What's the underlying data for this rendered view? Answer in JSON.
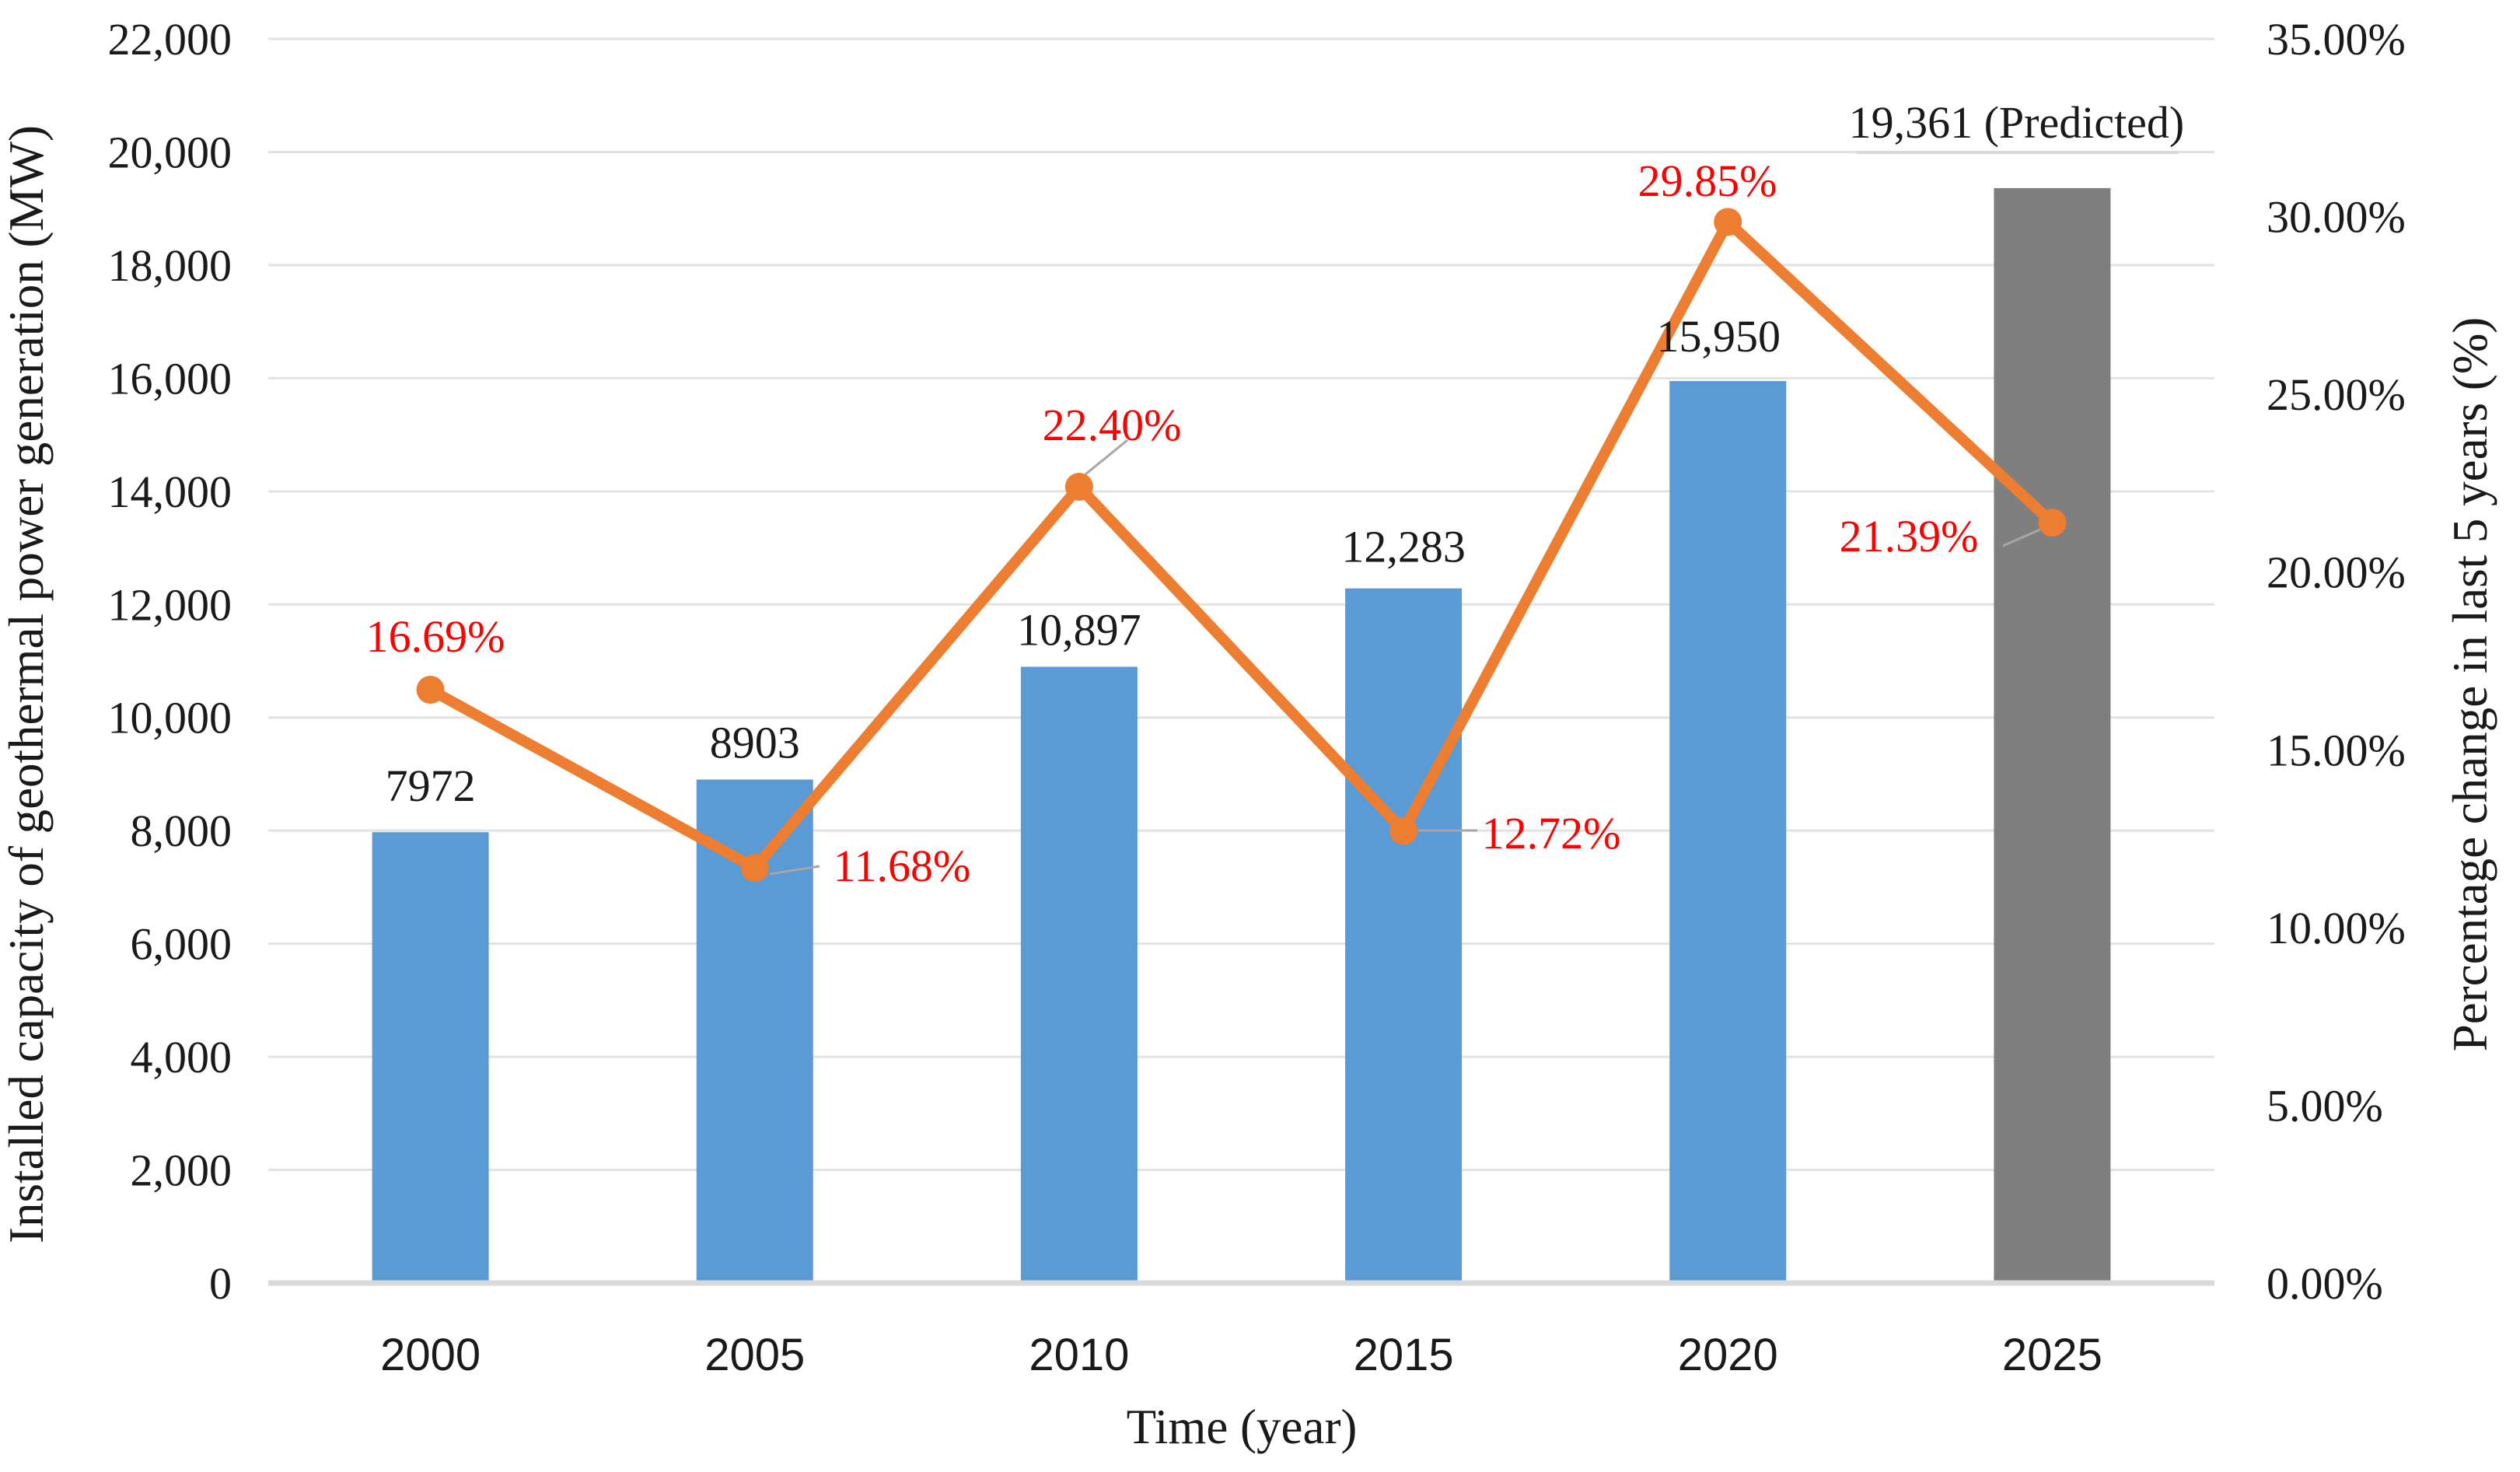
{
  "chart_data": {
    "type": "bar",
    "subtype": "bar-line-combo-dual-axis",
    "categories": [
      "2000",
      "2005",
      "2010",
      "2015",
      "2020",
      "2025"
    ],
    "series": [
      {
        "name": "Installed capacity of geothermal power generation (MW)",
        "type": "bar",
        "values": [
          7972,
          8903,
          10897,
          12283,
          15950,
          19361
        ],
        "labels": [
          "7972",
          "8903",
          "10,897",
          "12,283",
          "15,950",
          "19,361 (Predicted)"
        ],
        "bar_colors": [
          "#5B9BD5",
          "#5B9BD5",
          "#5B9BD5",
          "#5B9BD5",
          "#5B9BD5",
          "#7F7F7F"
        ],
        "note": "2025 bar is gray and marked Predicted"
      },
      {
        "name": "Percentage change in last 5 years (%)",
        "type": "line",
        "values": [
          16.69,
          11.68,
          22.4,
          12.72,
          29.85,
          21.39
        ],
        "labels": [
          "16.69%",
          "11.68%",
          "22.40%",
          "12.72%",
          "29.85%",
          "21.39%"
        ],
        "line_color": "#ED7D31",
        "label_color": "#FF0000"
      }
    ],
    "left_axis": {
      "title": "Installed capacity of geothermal power generation (MW)",
      "min": 0,
      "max": 22000,
      "step": 2000,
      "tick_labels": [
        "0",
        "2,000",
        "4,000",
        "6,000",
        "8,000",
        "10,000",
        "12,000",
        "14,000",
        "16,000",
        "18,000",
        "20,000",
        "22,000"
      ]
    },
    "right_axis": {
      "title": "Percentage change in last 5 years (%)",
      "min": 0,
      "max": 35,
      "step": 5,
      "tick_labels": [
        "0.00%",
        "5.00%",
        "10.00%",
        "15.00%",
        "20.00%",
        "25.00%",
        "30.00%",
        "35.00%"
      ]
    },
    "x_axis": {
      "title": "Time (year)"
    },
    "grid": true,
    "legend": "none",
    "colors": {
      "bar_blue": "#5B9BD5",
      "bar_gray": "#7F7F7F",
      "line_orange": "#ED7D31",
      "label_red": "#FF0000",
      "label_black": "#1a1a1a",
      "gridline": "#E2E2E2",
      "axis_line": "#D9D9D9",
      "leader_line": "#A6A6A6"
    }
  }
}
